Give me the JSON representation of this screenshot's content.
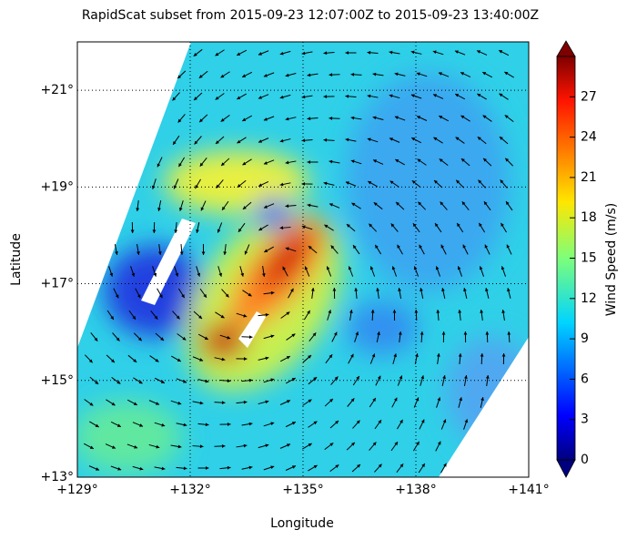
{
  "chart_data": {
    "type": "map",
    "title": "RapidScat subset from 2015-09-23 12:07:00Z to 2015-09-23 13:40:00Z",
    "x_label": "Longitude",
    "y_label": "Latitude",
    "xlim": [
      129,
      141
    ],
    "ylim": [
      13,
      22
    ],
    "xticks": [
      {
        "value": 129,
        "label": "+129°"
      },
      {
        "value": 132,
        "label": "+132°"
      },
      {
        "value": 135,
        "label": "+135°"
      },
      {
        "value": 138,
        "label": "+138°"
      },
      {
        "value": 141,
        "label": "+141°"
      }
    ],
    "yticks": [
      {
        "value": 13,
        "label": "+13°"
      },
      {
        "value": 15,
        "label": "+15°"
      },
      {
        "value": 17,
        "label": "+17°"
      },
      {
        "value": 19,
        "label": "+19°"
      },
      {
        "value": 21,
        "label": "+21°"
      }
    ],
    "grid": true,
    "colorbar": {
      "label": "Wind Speed (m/s)",
      "lim": [
        0,
        30
      ],
      "ticks": [
        0,
        3,
        6,
        9,
        12,
        15,
        18,
        21,
        24,
        27
      ]
    }
  }
}
